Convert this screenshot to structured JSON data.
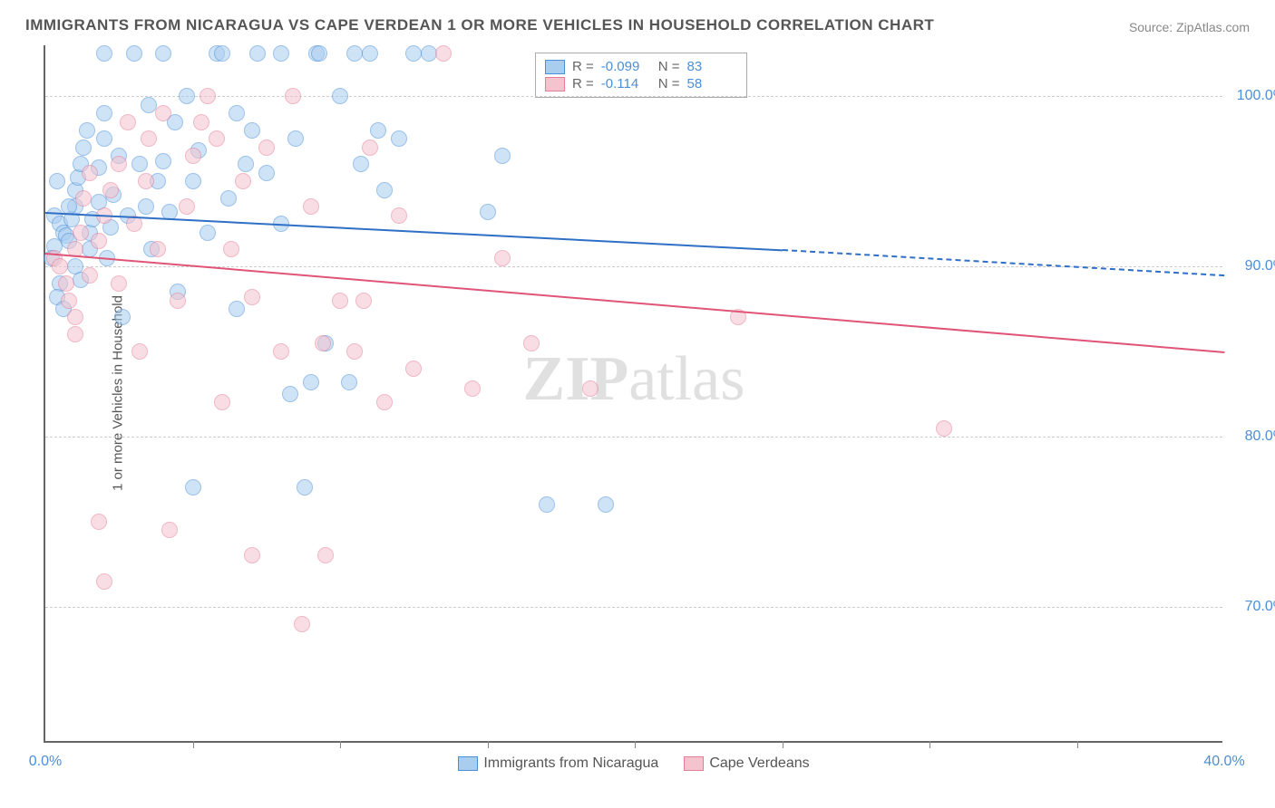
{
  "title": "IMMIGRANTS FROM NICARAGUA VS CAPE VERDEAN 1 OR MORE VEHICLES IN HOUSEHOLD CORRELATION CHART",
  "source_prefix": "Source: ",
  "source_name": "ZipAtlas.com",
  "watermark_a": "ZIP",
  "watermark_b": "atlas",
  "chart": {
    "type": "scatter",
    "ylabel": "1 or more Vehicles in Household",
    "xlim": [
      0,
      40
    ],
    "ylim": [
      62,
      103
    ],
    "xticks": [
      0,
      40
    ],
    "xtick_minor": [
      5,
      10,
      15,
      20,
      25,
      30,
      35
    ],
    "yticks": [
      70,
      80,
      90,
      100
    ],
    "xtick_fmt": "%",
    "ytick_fmt": "%",
    "background_color": "#ffffff",
    "grid_color": "#cccccc",
    "axis_color": "#666666",
    "tick_label_color": "#4a8fd8",
    "marker_alpha": 0.55,
    "marker_radius": 9,
    "series": [
      {
        "name": "Immigrants from Nicaragua",
        "fill": "#a9cdef",
        "stroke": "#4a8fd8",
        "line_color": "#2f6fc5",
        "R": "-0.099",
        "N": "83",
        "trend": {
          "x0": 0,
          "y0": 93.2,
          "x1": 25,
          "y1": 91.0,
          "x1_dash": 40,
          "y1_dash": 89.5
        },
        "points": [
          [
            0.3,
            93.0
          ],
          [
            0.5,
            92.5
          ],
          [
            0.6,
            92.0
          ],
          [
            0.7,
            91.8
          ],
          [
            0.8,
            91.5
          ],
          [
            0.9,
            92.8
          ],
          [
            1.0,
            93.5
          ],
          [
            1.0,
            94.5
          ],
          [
            1.1,
            95.2
          ],
          [
            1.2,
            96.0
          ],
          [
            1.3,
            97.0
          ],
          [
            1.4,
            98.0
          ],
          [
            1.5,
            92.0
          ],
          [
            1.6,
            92.8
          ],
          [
            1.8,
            95.8
          ],
          [
            1.8,
            93.8
          ],
          [
            2.0,
            102.5
          ],
          [
            2.0,
            99.0
          ],
          [
            2.0,
            97.5
          ],
          [
            2.1,
            90.5
          ],
          [
            2.2,
            92.3
          ],
          [
            2.3,
            94.2
          ],
          [
            2.5,
            96.5
          ],
          [
            2.6,
            87.0
          ],
          [
            2.8,
            93.0
          ],
          [
            3.0,
            102.5
          ],
          [
            3.2,
            96.0
          ],
          [
            3.4,
            93.5
          ],
          [
            3.5,
            99.5
          ],
          [
            3.6,
            91.0
          ],
          [
            3.8,
            95.0
          ],
          [
            4.0,
            102.5
          ],
          [
            4.0,
            96.2
          ],
          [
            4.2,
            93.2
          ],
          [
            4.4,
            98.5
          ],
          [
            4.5,
            88.5
          ],
          [
            4.8,
            100.0
          ],
          [
            5.0,
            77.0
          ],
          [
            5.0,
            95.0
          ],
          [
            5.2,
            96.8
          ],
          [
            5.5,
            92.0
          ],
          [
            5.8,
            102.5
          ],
          [
            6.0,
            102.5
          ],
          [
            6.2,
            94.0
          ],
          [
            6.5,
            99.0
          ],
          [
            6.5,
            87.5
          ],
          [
            6.8,
            96.0
          ],
          [
            7.0,
            98.0
          ],
          [
            7.2,
            102.5
          ],
          [
            7.5,
            95.5
          ],
          [
            8.0,
            92.5
          ],
          [
            8.0,
            102.5
          ],
          [
            8.3,
            82.5
          ],
          [
            8.5,
            97.5
          ],
          [
            8.8,
            77.0
          ],
          [
            9.0,
            83.2
          ],
          [
            9.2,
            102.5
          ],
          [
            9.3,
            102.5
          ],
          [
            9.5,
            85.5
          ],
          [
            10.0,
            100.0
          ],
          [
            10.3,
            83.2
          ],
          [
            10.5,
            102.5
          ],
          [
            10.7,
            96.0
          ],
          [
            11.0,
            102.5
          ],
          [
            11.3,
            98.0
          ],
          [
            11.5,
            94.5
          ],
          [
            12.0,
            97.5
          ],
          [
            12.5,
            102.5
          ],
          [
            13.0,
            102.5
          ],
          [
            15.0,
            93.2
          ],
          [
            15.5,
            96.5
          ],
          [
            17.0,
            76.0
          ],
          [
            19.0,
            76.0
          ],
          [
            0.5,
            89.0
          ],
          [
            0.4,
            88.2
          ],
          [
            0.6,
            87.5
          ],
          [
            1.0,
            90.0
          ],
          [
            1.2,
            89.2
          ],
          [
            1.5,
            91.0
          ],
          [
            0.3,
            91.2
          ],
          [
            0.2,
            90.5
          ],
          [
            0.8,
            93.5
          ],
          [
            0.4,
            95.0
          ]
        ]
      },
      {
        "name": "Cape Verdeans",
        "fill": "#f5c3ce",
        "stroke": "#e57d97",
        "line_color": "#e05577",
        "R": "-0.114",
        "N": "58",
        "trend": {
          "x0": 0,
          "y0": 90.8,
          "x1": 40,
          "y1": 85.0,
          "x1_dash": 40,
          "y1_dash": 85.0
        },
        "points": [
          [
            0.3,
            90.5
          ],
          [
            0.5,
            90.0
          ],
          [
            0.7,
            89.0
          ],
          [
            0.8,
            88.0
          ],
          [
            1.0,
            87.0
          ],
          [
            1.0,
            91.0
          ],
          [
            1.2,
            92.0
          ],
          [
            1.3,
            94.0
          ],
          [
            1.5,
            95.5
          ],
          [
            1.5,
            89.5
          ],
          [
            1.8,
            91.5
          ],
          [
            1.8,
            75.0
          ],
          [
            2.0,
            93.0
          ],
          [
            2.0,
            71.5
          ],
          [
            2.2,
            94.5
          ],
          [
            2.5,
            96.0
          ],
          [
            2.5,
            89.0
          ],
          [
            2.8,
            98.5
          ],
          [
            3.0,
            92.5
          ],
          [
            3.2,
            85.0
          ],
          [
            3.4,
            95.0
          ],
          [
            3.5,
            97.5
          ],
          [
            3.8,
            91.0
          ],
          [
            4.0,
            99.0
          ],
          [
            4.2,
            74.5
          ],
          [
            4.5,
            88.0
          ],
          [
            4.8,
            93.5
          ],
          [
            5.0,
            96.5
          ],
          [
            5.3,
            98.5
          ],
          [
            5.5,
            100.0
          ],
          [
            5.8,
            97.5
          ],
          [
            6.0,
            82.0
          ],
          [
            6.3,
            91.0
          ],
          [
            6.7,
            95.0
          ],
          [
            7.0,
            73.0
          ],
          [
            7.0,
            88.2
          ],
          [
            7.5,
            97.0
          ],
          [
            8.0,
            85.0
          ],
          [
            8.4,
            100.0
          ],
          [
            8.7,
            69.0
          ],
          [
            9.0,
            93.5
          ],
          [
            9.4,
            85.5
          ],
          [
            9.5,
            73.0
          ],
          [
            10.0,
            88.0
          ],
          [
            10.5,
            85.0
          ],
          [
            10.8,
            88.0
          ],
          [
            11.0,
            97.0
          ],
          [
            11.5,
            82.0
          ],
          [
            12.0,
            93.0
          ],
          [
            12.5,
            84.0
          ],
          [
            13.5,
            102.5
          ],
          [
            14.5,
            82.8
          ],
          [
            15.5,
            90.5
          ],
          [
            16.5,
            85.5
          ],
          [
            18.5,
            82.8
          ],
          [
            23.5,
            87.0
          ],
          [
            30.5,
            80.5
          ],
          [
            1.0,
            86.0
          ]
        ]
      }
    ]
  },
  "legend_top_labels": {
    "R": "R =",
    "N": "N ="
  }
}
